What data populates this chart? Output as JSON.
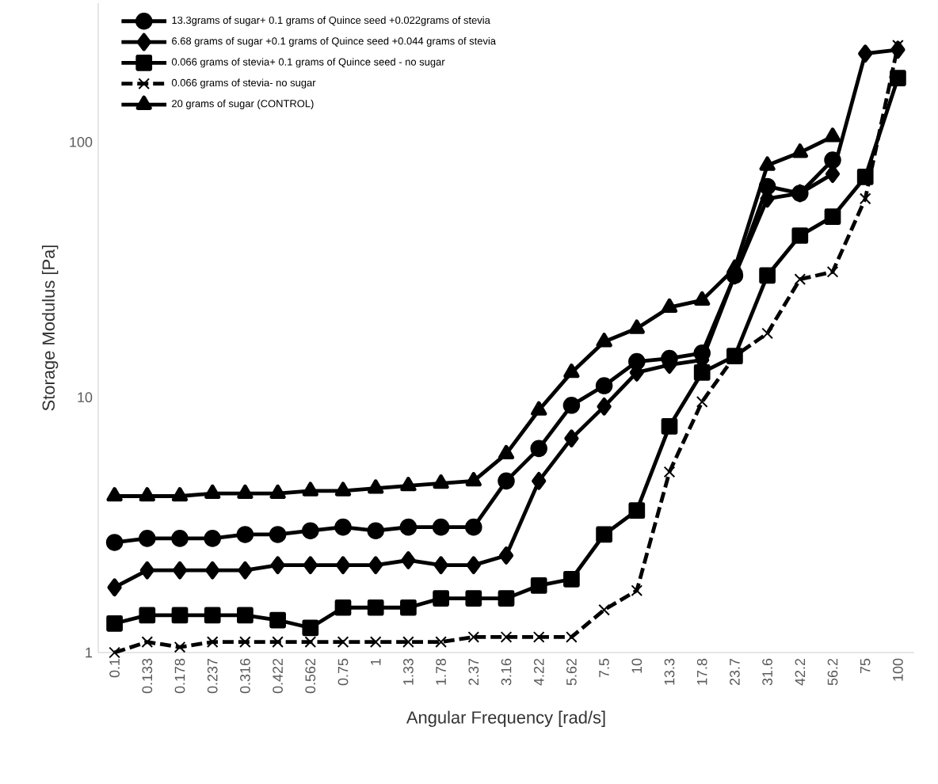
{
  "chart_data": {
    "type": "line",
    "xlabel": "Angular Frequency [rad/s]",
    "ylabel": "Storage Modulus [Pa]",
    "categories": [
      "0.1",
      "0.133",
      "0.178",
      "0.237",
      "0.316",
      "0.422",
      "0.562",
      "0.75",
      "1",
      "1.33",
      "1.78",
      "2.37",
      "3.16",
      "4.22",
      "5.62",
      "7.5",
      "10",
      "13.3",
      "17.8",
      "23.7",
      "31.6",
      "42.2",
      "56.2",
      "75",
      "100"
    ],
    "log": "y",
    "ylim": [
      1,
      350
    ],
    "yticks": [
      1,
      10,
      100
    ],
    "grid": false,
    "legend": "top left",
    "series": [
      {
        "name": "13.3grams of sugar+  0.1 grams of Quince seed +0.022grams of stevia",
        "color": "#000000",
        "marker": "circle",
        "line_style": "solid",
        "values": [
          2.7,
          2.8,
          2.8,
          2.8,
          2.9,
          2.9,
          3.0,
          3.1,
          3.0,
          3.1,
          3.1,
          3.1,
          4.7,
          6.3,
          9.3,
          11.1,
          13.8,
          14.2,
          14.9,
          30,
          67,
          63,
          85,
          null,
          null
        ]
      },
      {
        "name": "6.68 grams of sugar +0.1 grams of Quince seed  +0.044 grams of stevia",
        "color": "#000000",
        "marker": "diamond",
        "line_style": "solid",
        "values": [
          1.8,
          2.1,
          2.1,
          2.1,
          2.1,
          2.2,
          2.2,
          2.2,
          2.2,
          2.3,
          2.2,
          2.2,
          2.4,
          4.7,
          6.9,
          9.2,
          12.5,
          13.4,
          14,
          30,
          60,
          63,
          75,
          222,
          230
        ]
      },
      {
        "name": "0.066 grams of stevia+ 0.1 grams of Quince seed - no sugar",
        "color": "#000000",
        "marker": "square",
        "line_style": "solid",
        "values": [
          1.3,
          1.4,
          1.4,
          1.4,
          1.4,
          1.34,
          1.25,
          1.5,
          1.5,
          1.5,
          1.63,
          1.63,
          1.63,
          1.83,
          1.94,
          2.9,
          3.6,
          7.7,
          12.5,
          14.5,
          30,
          43,
          51,
          73,
          178
        ]
      },
      {
        "name": "0.066 grams of stevia-  no sugar",
        "color": "#000000",
        "marker": "cross",
        "line_style": "dashed",
        "values": [
          1.0,
          1.1,
          1.05,
          1.1,
          1.1,
          1.1,
          1.1,
          1.1,
          1.1,
          1.1,
          1.1,
          1.15,
          1.15,
          1.15,
          1.15,
          1.47,
          1.75,
          5.1,
          9.6,
          14.5,
          17.8,
          29,
          31,
          60,
          239
        ]
      },
      {
        "name": "20 grams of sugar (CONTROL)",
        "color": "#000000",
        "marker": "triangle",
        "line_style": "solid",
        "values": [
          4.1,
          4.1,
          4.1,
          4.2,
          4.2,
          4.2,
          4.3,
          4.3,
          4.4,
          4.5,
          4.6,
          4.7,
          6.0,
          8.9,
          12.5,
          16.5,
          18.6,
          22.5,
          24,
          32,
          81,
          91,
          105,
          null,
          null
        ]
      }
    ]
  }
}
